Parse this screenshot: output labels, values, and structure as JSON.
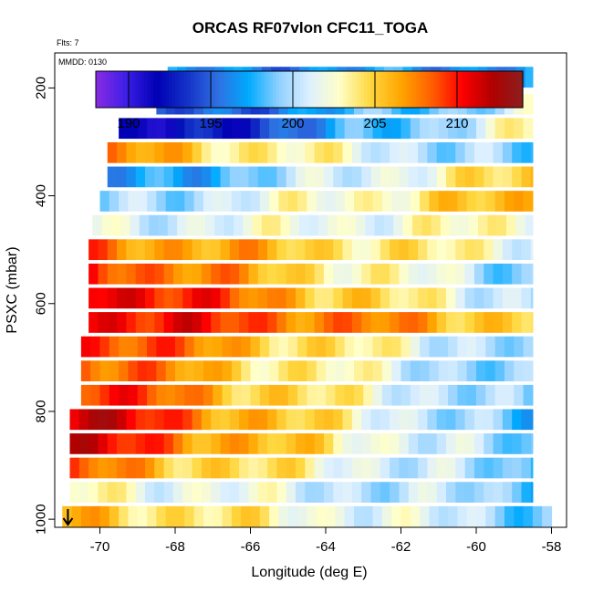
{
  "chart_data": {
    "type": "heatmap",
    "title": "ORCAS RF07vlon CFC11_TOGA",
    "flts_label": "Flts: 7",
    "mmdd_label": "MMDD: 0130",
    "xlabel": "Longitude (deg E)",
    "ylabel": "PSXC (mbar)",
    "xlim": [
      -71.2,
      -57.6
    ],
    "ylim": [
      1015,
      135
    ],
    "x_ticks": [
      "-70",
      "-68",
      "-66",
      "-64",
      "-62",
      "-60",
      "-58"
    ],
    "y_ticks": [
      "200",
      "400",
      "600",
      "800",
      "1000"
    ],
    "colorbar": {
      "range": [
        188,
        214
      ],
      "ticks": [
        "190",
        "195",
        "200",
        "205",
        "210"
      ],
      "colors": [
        "#8a2be2",
        "#3c1ee8",
        "#0000b4",
        "#1432c8",
        "#2f6fe0",
        "#00aaff",
        "#8fd0ff",
        "#ddf0ff",
        "#ffffc8",
        "#ffd840",
        "#ffa500",
        "#ff6000",
        "#ff0000",
        "#b00000",
        "#8b2020"
      ]
    },
    "rows": [
      {
        "p": 180,
        "x0": -68.2,
        "x1": -58.5,
        "v0": 196,
        "v1": 197
      },
      {
        "p": 230,
        "x0": -68.5,
        "x1": -58.5,
        "v0": 194,
        "v1": 201
      },
      {
        "p": 275,
        "x0": -69.5,
        "x1": -58.5,
        "v0": 190,
        "v1": 203
      },
      {
        "p": 320,
        "x0": -69.8,
        "x1": -58.5,
        "v0": 207,
        "v1": 198
      },
      {
        "p": 365,
        "x0": -69.8,
        "x1": -58.5,
        "v0": 196,
        "v1": 205
      },
      {
        "p": 410,
        "x0": -70.0,
        "x1": -58.5,
        "v0": 199,
        "v1": 206
      },
      {
        "p": 455,
        "x0": -70.2,
        "x1": -58.5,
        "v0": 201,
        "v1": 203
      },
      {
        "p": 500,
        "x0": -70.3,
        "x1": -58.5,
        "v0": 208,
        "v1": 202
      },
      {
        "p": 545,
        "x0": -70.3,
        "x1": -58.5,
        "v0": 210,
        "v1": 199
      },
      {
        "p": 590,
        "x0": -70.3,
        "x1": -58.5,
        "v0": 212,
        "v1": 200
      },
      {
        "p": 635,
        "x0": -70.3,
        "x1": -58.5,
        "v0": 211,
        "v1": 205
      },
      {
        "p": 680,
        "x0": -70.5,
        "x1": -58.5,
        "v0": 210,
        "v1": 199
      },
      {
        "p": 725,
        "x0": -70.5,
        "x1": -58.5,
        "v0": 209,
        "v1": 198
      },
      {
        "p": 770,
        "x0": -70.5,
        "x1": -58.5,
        "v0": 210,
        "v1": 198
      },
      {
        "p": 815,
        "x0": -70.8,
        "x1": -58.5,
        "v0": 212,
        "v1": 197
      },
      {
        "p": 860,
        "x0": -70.8,
        "x1": -58.5,
        "v0": 211,
        "v1": 198
      },
      {
        "p": 905,
        "x0": -70.8,
        "x1": -58.5,
        "v0": 208,
        "v1": 198
      },
      {
        "p": 950,
        "x0": -70.8,
        "x1": -58.5,
        "v0": 203,
        "v1": 199
      },
      {
        "p": 995,
        "x0": -71.0,
        "x1": -58.0,
        "v0": 206,
        "v1": 199
      }
    ]
  }
}
